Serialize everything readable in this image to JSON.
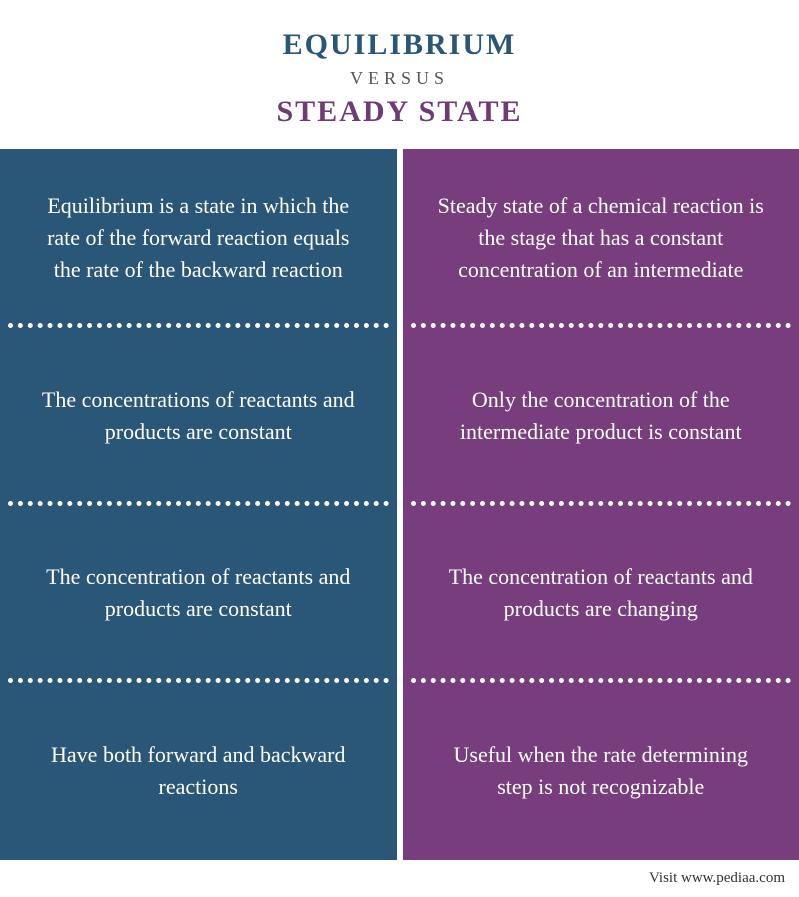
{
  "header": {
    "title_left": "EQUILIBRIUM",
    "versus": "VERSUS",
    "title_right": "STEADY STATE",
    "title_left_color": "#2a5677",
    "title_right_color": "#6f3b74",
    "versus_color": "#555555"
  },
  "columns": {
    "left": {
      "background_color": "#2a5677",
      "rows": [
        "Equilibrium is a state in which the rate of the forward reaction equals the rate of the backward reaction",
        "The concentrations of reactants and products are constant",
        "The concentration of reactants and products are constant",
        "Have both forward and backward reactions"
      ]
    },
    "right": {
      "background_color": "#783d7d",
      "rows": [
        "Steady state of a chemical reaction is the stage that has a constant concentration of an intermediate",
        "Only the concentration of the intermediate product is constant",
        "The concentration of reactants and products are changing",
        "Useful when the rate determining step is not recognizable"
      ]
    }
  },
  "footer": {
    "text": "Visit www.pediaa.com"
  },
  "style": {
    "body_background": "#ffffff",
    "cell_text_color": "#ffffff",
    "cell_font_size": 22,
    "title_font_size": 30,
    "versus_font_size": 18,
    "divider_color": "#ffffff",
    "column_gap": 6
  }
}
